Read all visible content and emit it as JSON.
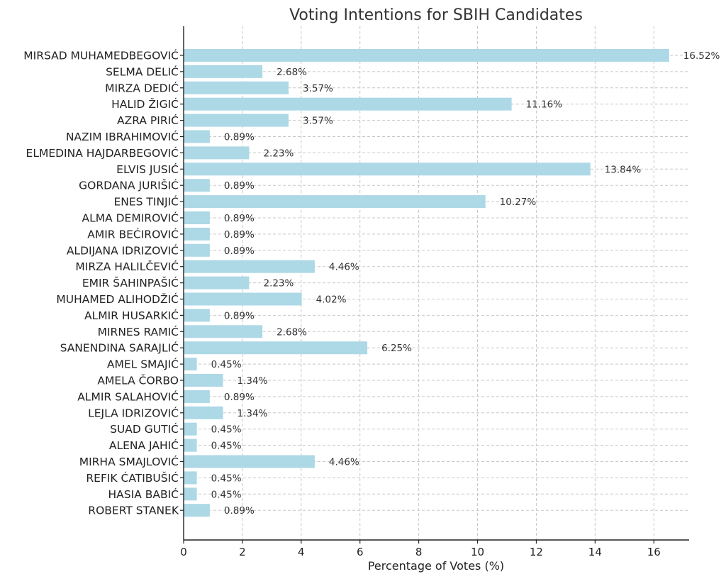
{
  "chart_data": {
    "type": "bar",
    "orientation": "horizontal",
    "title": "Voting Intentions for SBIH Candidates",
    "xlabel": "Percentage of Votes (%)",
    "ylabel": "",
    "xlim": [
      0,
      17.2
    ],
    "xticks": [
      0,
      2,
      4,
      6,
      8,
      10,
      12,
      14,
      16
    ],
    "grid": true,
    "bar_color": "#add8e6",
    "categories": [
      "MIRSAD MUHAMEDBEGOVIĆ",
      "SELMA DELIĆ",
      "MIRZA DEDIĆ",
      "HALID ŽIGIĆ",
      "AZRA PIRIĆ",
      "NAZIM IBRAHIMOVIĆ",
      "ELMEDINA HAJDARBEGOVIĆ",
      "ELVIS JUSIĆ",
      "GORDANA JURIŠIĆ",
      "ENES TINJIĆ",
      "ALMA DEMIROVIĆ",
      "AMIR BEĆIROVIĆ",
      "ALDIJANA IDRIZOVIĆ",
      "MIRZA HALILČEVIĆ",
      "EMIR ŠAHINPAŠIĆ",
      "MUHAMED ALIHODŽIĆ",
      "ALMIR HUSARKIĆ",
      "MIRNES RAMIĆ",
      "SANENDINA SARAJLIĆ",
      "AMEL SMAJIĆ",
      "AMELA ČORBO",
      "ALMIR SALAHOVIĆ",
      "LEJLA IDRIZOVIĆ",
      "SUAD GUTIĆ",
      "ALENA JAHIĆ",
      "MIRHA SMAJLOVIĆ",
      "REFIK ĆATIBUŠIĆ",
      "HASIA BABIĆ",
      "ROBERT STANEK"
    ],
    "values": [
      16.52,
      2.68,
      3.57,
      11.16,
      3.57,
      0.89,
      2.23,
      13.84,
      0.89,
      10.27,
      0.89,
      0.89,
      0.89,
      4.46,
      2.23,
      4.02,
      0.89,
      2.68,
      6.25,
      0.45,
      1.34,
      0.89,
      1.34,
      0.45,
      0.45,
      4.46,
      0.45,
      0.45,
      0.89
    ],
    "value_labels": [
      "16.52%",
      "2.68%",
      "3.57%",
      "11.16%",
      "3.57%",
      "0.89%",
      "2.23%",
      "13.84%",
      "0.89%",
      "10.27%",
      "0.89%",
      "0.89%",
      "0.89%",
      "4.46%",
      "2.23%",
      "4.02%",
      "0.89%",
      "2.68%",
      "6.25%",
      "0.45%",
      "1.34%",
      "0.89%",
      "1.34%",
      "0.45%",
      "0.45%",
      "4.46%",
      "0.45%",
      "0.45%",
      "0.89%"
    ]
  }
}
